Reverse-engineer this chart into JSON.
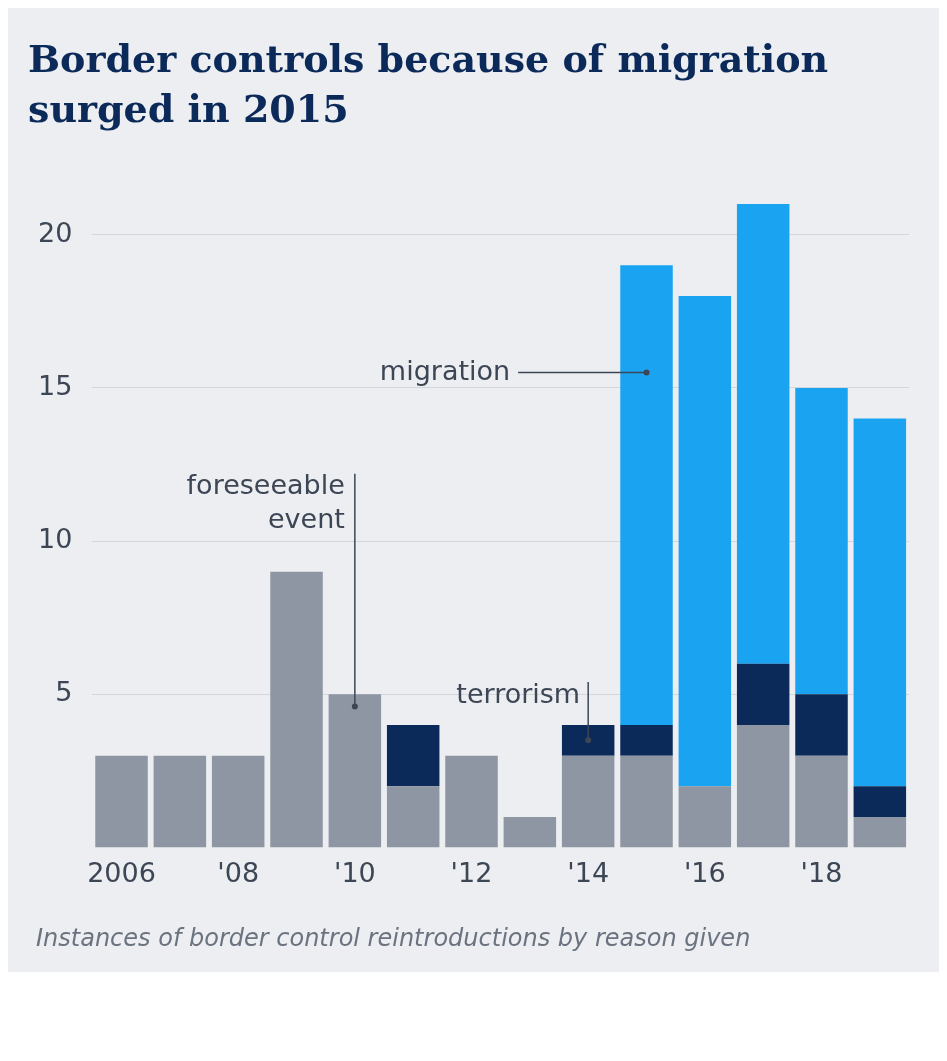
{
  "chart_data": {
    "type": "bar",
    "title": "Border controls because of migration surged in 2015",
    "stacked": true,
    "categories": [
      "2006",
      null,
      "'08",
      null,
      "'10",
      null,
      "'12",
      null,
      "'14",
      null,
      "'16",
      null,
      "'18",
      null
    ],
    "series": [
      {
        "name": "foreseeable event",
        "color": "#8e96a3",
        "values": [
          3,
          3,
          3,
          9,
          5,
          2,
          3,
          1,
          3,
          3,
          2,
          4,
          3,
          1
        ]
      },
      {
        "name": "terrorism",
        "color": "#0b2a5a",
        "values": [
          0,
          0,
          0,
          0,
          0,
          2,
          0,
          0,
          1,
          1,
          0,
          2,
          2,
          1
        ]
      },
      {
        "name": "migration",
        "color": "#1aa3f0",
        "values": [
          0,
          0,
          0,
          0,
          0,
          0,
          0,
          0,
          0,
          15,
          16,
          15,
          10,
          12
        ]
      }
    ],
    "ylim": [
      0,
      21
    ],
    "yticks": [
      5,
      10,
      15,
      20
    ],
    "grid": "y",
    "legend": false,
    "annotations": [
      "Instances of border control reintroductions by reason given"
    ]
  }
}
